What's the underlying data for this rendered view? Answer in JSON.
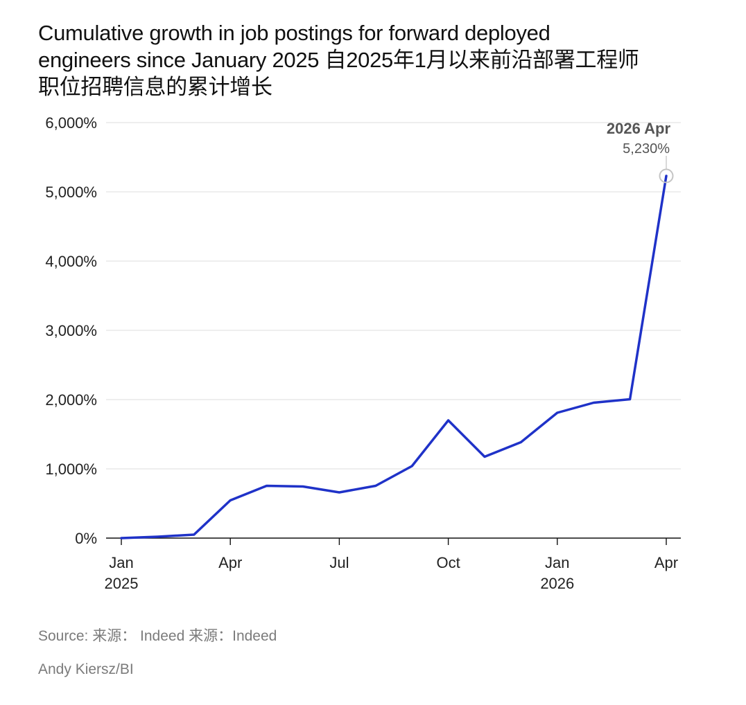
{
  "chart_data": {
    "type": "line",
    "title_lines": [
      "Cumulative growth in job postings for forward deployed",
      "engineers since January 2025 自2025年1月以来前沿部署工程师",
      "职位招聘信息的累计增长"
    ],
    "xlabel": "",
    "ylabel": "",
    "ylim": [
      0,
      6000
    ],
    "yticks": [
      {
        "value": 0,
        "label": "0%"
      },
      {
        "value": 1000,
        "label": "1,000%"
      },
      {
        "value": 2000,
        "label": "2,000%"
      },
      {
        "value": 3000,
        "label": "3,000%"
      },
      {
        "value": 4000,
        "label": "4,000%"
      },
      {
        "value": 5000,
        "label": "5,000%"
      },
      {
        "value": 6000,
        "label": "6,000%"
      }
    ],
    "xticks": [
      {
        "month": "2025-01",
        "label": "Jan",
        "year": "2025"
      },
      {
        "month": "2025-04",
        "label": "Apr",
        "year": ""
      },
      {
        "month": "2025-07",
        "label": "Jul",
        "year": ""
      },
      {
        "month": "2025-10",
        "label": "Oct",
        "year": ""
      },
      {
        "month": "2026-01",
        "label": "Jan",
        "year": "2026"
      },
      {
        "month": "2026-04",
        "label": "Apr",
        "year": ""
      }
    ],
    "grid": true,
    "series": [
      {
        "color": "#1f32c8",
        "points": [
          {
            "x": "2025-01",
            "y": 0
          },
          {
            "x": "2025-02",
            "y": 20
          },
          {
            "x": "2025-03",
            "y": 50
          },
          {
            "x": "2025-04",
            "y": 545
          },
          {
            "x": "2025-05",
            "y": 755
          },
          {
            "x": "2025-06",
            "y": 745
          },
          {
            "x": "2025-07",
            "y": 660
          },
          {
            "x": "2025-08",
            "y": 755
          },
          {
            "x": "2025-09",
            "y": 1040
          },
          {
            "x": "2025-10",
            "y": 1700
          },
          {
            "x": "2025-11",
            "y": 1175
          },
          {
            "x": "2025-12",
            "y": 1385
          },
          {
            "x": "2026-01",
            "y": 1810
          },
          {
            "x": "2026-02",
            "y": 1955
          },
          {
            "x": "2026-03",
            "y": 2005
          },
          {
            "x": "2026-04",
            "y": 5230
          }
        ]
      }
    ],
    "annotation": {
      "x": "2026-04",
      "date_label": "2026 Apr",
      "value_label": "5,230%"
    }
  },
  "footer": {
    "source": "Source: 来源： Indeed 来源：Indeed",
    "credit": "Andy Kiersz/BI"
  }
}
